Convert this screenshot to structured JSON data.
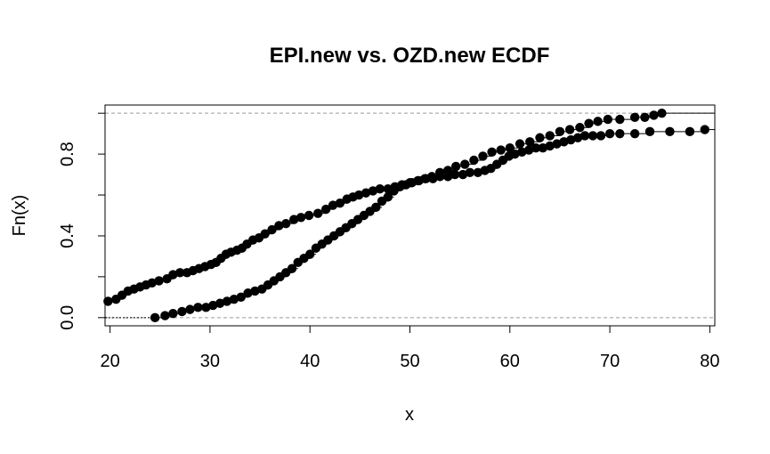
{
  "chart_data": {
    "type": "scatter",
    "title": "EPI.new vs. OZD.new ECDF",
    "xlabel": "x",
    "ylabel": "Fn(x)",
    "xlim": [
      19.5,
      80.5
    ],
    "ylim": [
      -0.04,
      1.04
    ],
    "x_ticks": [
      "20",
      "30",
      "40",
      "50",
      "60",
      "70",
      "80"
    ],
    "y_ticks": [
      "0.0",
      "0.4",
      "0.8"
    ],
    "y_minor_ticks": [
      0.0,
      0.2,
      0.4,
      0.6,
      0.8,
      1.0
    ],
    "reference_lines": [
      0,
      1
    ],
    "series": [
      {
        "points": [
          [
            19.8,
            0.08
          ],
          [
            20.6,
            0.09
          ],
          [
            21.2,
            0.11
          ],
          [
            21.8,
            0.13
          ],
          [
            22.4,
            0.14
          ],
          [
            23.0,
            0.15
          ],
          [
            23.6,
            0.16
          ],
          [
            24.2,
            0.17
          ],
          [
            24.9,
            0.18
          ],
          [
            25.7,
            0.19
          ],
          [
            26.3,
            0.21
          ],
          [
            27.0,
            0.22
          ],
          [
            27.7,
            0.22
          ],
          [
            28.3,
            0.23
          ],
          [
            28.9,
            0.24
          ],
          [
            29.5,
            0.25
          ],
          [
            30.1,
            0.26
          ],
          [
            30.6,
            0.27
          ],
          [
            31.1,
            0.29
          ],
          [
            31.6,
            0.31
          ],
          [
            32.1,
            0.32
          ],
          [
            32.7,
            0.33
          ],
          [
            33.2,
            0.34
          ],
          [
            33.7,
            0.36
          ],
          [
            34.3,
            0.38
          ],
          [
            34.9,
            0.39
          ],
          [
            35.5,
            0.41
          ],
          [
            36.2,
            0.43
          ],
          [
            36.9,
            0.45
          ],
          [
            37.6,
            0.46
          ],
          [
            38.4,
            0.48
          ],
          [
            39.1,
            0.49
          ],
          [
            39.9,
            0.5
          ],
          [
            40.8,
            0.51
          ],
          [
            41.6,
            0.53
          ],
          [
            42.3,
            0.55
          ],
          [
            43.0,
            0.56
          ],
          [
            43.7,
            0.58
          ],
          [
            44.3,
            0.59
          ],
          [
            44.9,
            0.6
          ],
          [
            45.6,
            0.61
          ],
          [
            46.3,
            0.62
          ],
          [
            47.0,
            0.63
          ],
          [
            47.8,
            0.63
          ],
          [
            48.5,
            0.64
          ],
          [
            49.2,
            0.65
          ],
          [
            50.0,
            0.66
          ],
          [
            50.8,
            0.67
          ],
          [
            51.5,
            0.68
          ],
          [
            52.2,
            0.69
          ],
          [
            53.0,
            0.71
          ],
          [
            53.8,
            0.72
          ],
          [
            54.6,
            0.74
          ],
          [
            55.5,
            0.75
          ],
          [
            56.4,
            0.77
          ],
          [
            57.3,
            0.79
          ],
          [
            58.2,
            0.81
          ],
          [
            59.1,
            0.82
          ],
          [
            60.0,
            0.83
          ],
          [
            61.0,
            0.85
          ],
          [
            62.0,
            0.86
          ],
          [
            63.0,
            0.88
          ],
          [
            64.0,
            0.89
          ],
          [
            65.0,
            0.91
          ],
          [
            66.0,
            0.92
          ],
          [
            67.0,
            0.93
          ],
          [
            67.9,
            0.95
          ],
          [
            68.8,
            0.96
          ],
          [
            69.8,
            0.97
          ],
          [
            71.0,
            0.97
          ],
          [
            72.5,
            0.98
          ],
          [
            73.5,
            0.98
          ],
          [
            74.4,
            0.99
          ],
          [
            75.2,
            1.0
          ]
        ]
      },
      {
        "points": [
          [
            24.5,
            0.0
          ],
          [
            25.5,
            0.01
          ],
          [
            26.3,
            0.02
          ],
          [
            27.2,
            0.03
          ],
          [
            28.0,
            0.04
          ],
          [
            28.8,
            0.05
          ],
          [
            29.6,
            0.05
          ],
          [
            30.3,
            0.06
          ],
          [
            31.0,
            0.07
          ],
          [
            31.7,
            0.08
          ],
          [
            32.4,
            0.09
          ],
          [
            33.1,
            0.1
          ],
          [
            33.8,
            0.12
          ],
          [
            34.5,
            0.13
          ],
          [
            35.2,
            0.14
          ],
          [
            35.8,
            0.16
          ],
          [
            36.4,
            0.18
          ],
          [
            37.0,
            0.2
          ],
          [
            37.6,
            0.22
          ],
          [
            38.2,
            0.24
          ],
          [
            38.8,
            0.27
          ],
          [
            39.4,
            0.29
          ],
          [
            40.0,
            0.31
          ],
          [
            40.6,
            0.34
          ],
          [
            41.2,
            0.36
          ],
          [
            41.8,
            0.38
          ],
          [
            42.4,
            0.4
          ],
          [
            43.0,
            0.42
          ],
          [
            43.6,
            0.44
          ],
          [
            44.2,
            0.46
          ],
          [
            44.8,
            0.48
          ],
          [
            45.4,
            0.5
          ],
          [
            46.0,
            0.52
          ],
          [
            46.6,
            0.54
          ],
          [
            47.2,
            0.57
          ],
          [
            47.8,
            0.59
          ],
          [
            48.4,
            0.62
          ],
          [
            49.0,
            0.64
          ],
          [
            49.6,
            0.65
          ],
          [
            50.2,
            0.66
          ],
          [
            50.9,
            0.67
          ],
          [
            51.6,
            0.68
          ],
          [
            52.3,
            0.68
          ],
          [
            53.0,
            0.69
          ],
          [
            53.8,
            0.69
          ],
          [
            54.5,
            0.7
          ],
          [
            55.3,
            0.7
          ],
          [
            56.0,
            0.71
          ],
          [
            56.8,
            0.71
          ],
          [
            57.5,
            0.72
          ],
          [
            58.1,
            0.73
          ],
          [
            58.7,
            0.75
          ],
          [
            59.3,
            0.77
          ],
          [
            59.9,
            0.79
          ],
          [
            60.5,
            0.8
          ],
          [
            61.2,
            0.81
          ],
          [
            61.9,
            0.82
          ],
          [
            62.6,
            0.83
          ],
          [
            63.3,
            0.83
          ],
          [
            64.0,
            0.84
          ],
          [
            64.7,
            0.85
          ],
          [
            65.4,
            0.86
          ],
          [
            66.1,
            0.87
          ],
          [
            66.8,
            0.88
          ],
          [
            67.5,
            0.89
          ],
          [
            68.3,
            0.89
          ],
          [
            69.1,
            0.89
          ],
          [
            70.0,
            0.9
          ],
          [
            71.0,
            0.9
          ],
          [
            72.5,
            0.9
          ],
          [
            74.0,
            0.91
          ],
          [
            76.0,
            0.91
          ],
          [
            78.0,
            0.91
          ],
          [
            79.5,
            0.92
          ]
        ]
      }
    ]
  }
}
